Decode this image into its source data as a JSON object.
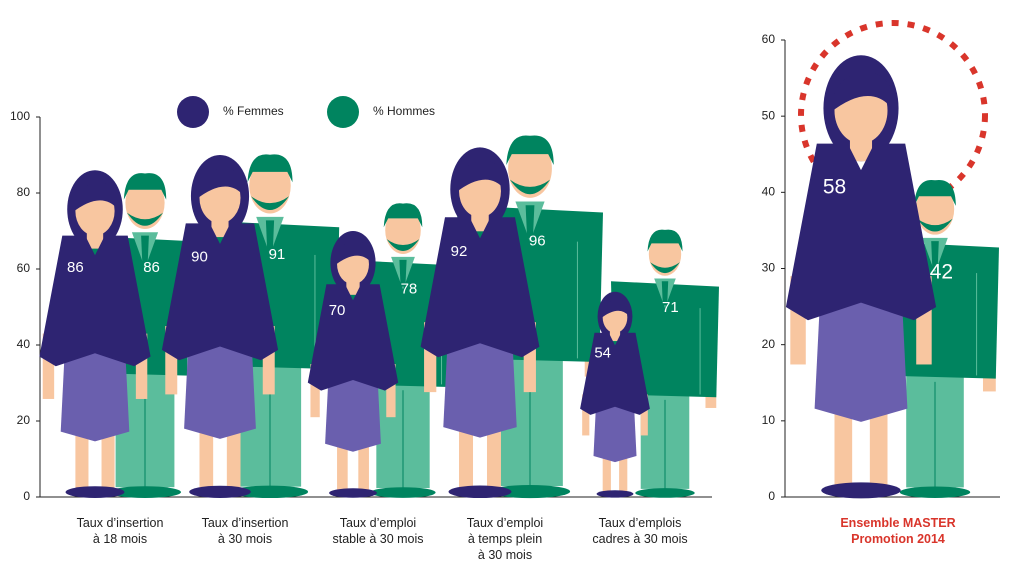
{
  "chart_data": [
    {
      "type": "pictogram",
      "categories": [
        "Taux d’insertion\nà 18 mois",
        "Taux d’insertion\nà 30 mois",
        "Taux d’emploi\nstable à 30 mois",
        "Taux d’emploi\nà temps plein\nà 30 mois",
        "Taux d’emplois\ncadres à 30 mois"
      ],
      "series": [
        {
          "name": "% Femmes",
          "color": "#2e2472",
          "values": [
            86,
            90,
            70,
            92,
            54
          ]
        },
        {
          "name": "% Hommes",
          "color": "#00845f",
          "values": [
            86,
            91,
            78,
            96,
            71
          ]
        }
      ],
      "ylim": [
        0,
        100
      ],
      "yticks": [
        0,
        20,
        40,
        60,
        80,
        100
      ]
    },
    {
      "type": "pictogram",
      "categories": [
        "Ensemble MASTER\nPromotion 2014"
      ],
      "series": [
        {
          "color": "#2e2472",
          "values": [
            58
          ]
        },
        {
          "color": "#00845f",
          "values": [
            42
          ]
        }
      ],
      "ylim": [
        0,
        60
      ],
      "yticks": [
        0,
        10,
        20,
        30,
        40,
        50,
        60
      ]
    }
  ]
}
